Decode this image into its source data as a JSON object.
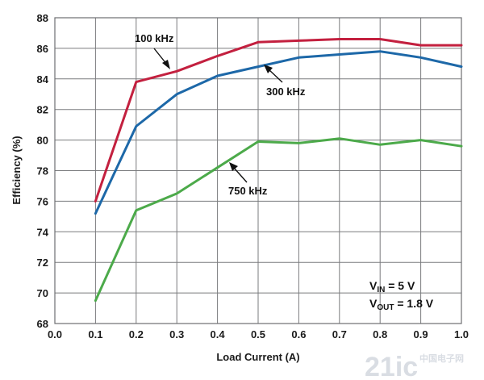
{
  "chart_data": {
    "type": "line",
    "xlabel": "Load Current (A)",
    "ylabel": "Efficiency (%)",
    "xlim": [
      0.0,
      1.0
    ],
    "ylim": [
      68,
      88
    ],
    "x_ticks": [
      "0.0",
      "0.1",
      "0.2",
      "0.3",
      "0.4",
      "0.5",
      "0.6",
      "0.7",
      "0.8",
      "0.9",
      "1.0"
    ],
    "y_ticks": [
      "68",
      "70",
      "72",
      "74",
      "76",
      "78",
      "80",
      "82",
      "84",
      "86",
      "88"
    ],
    "grid": true,
    "x": [
      0.1,
      0.2,
      0.3,
      0.4,
      0.5,
      0.6,
      0.7,
      0.8,
      0.9,
      1.0
    ],
    "series": [
      {
        "name": "100 kHz",
        "color": "#c3203f",
        "values": [
          76.0,
          83.8,
          84.5,
          85.5,
          86.4,
          86.5,
          86.6,
          86.6,
          86.2,
          86.2
        ]
      },
      {
        "name": "300 kHz",
        "color": "#1d68a8",
        "values": [
          75.2,
          80.9,
          83.0,
          84.2,
          84.8,
          85.4,
          85.6,
          85.8,
          85.4,
          84.8
        ]
      },
      {
        "name": "750 kHz",
        "color": "#4caa4a",
        "values": [
          69.5,
          75.4,
          76.5,
          78.2,
          79.9,
          79.8,
          80.1,
          79.7,
          80.0,
          79.6
        ]
      }
    ],
    "conditions": {
      "vin_main": "V",
      "vin_sub": "IN",
      "vin_value": " = 5 V",
      "vout_main": "V",
      "vout_sub": "OUT",
      "vout_value": " = 1.8 V"
    }
  },
  "watermark": {
    "text": "21ic",
    "subtext": "中国电子网"
  }
}
